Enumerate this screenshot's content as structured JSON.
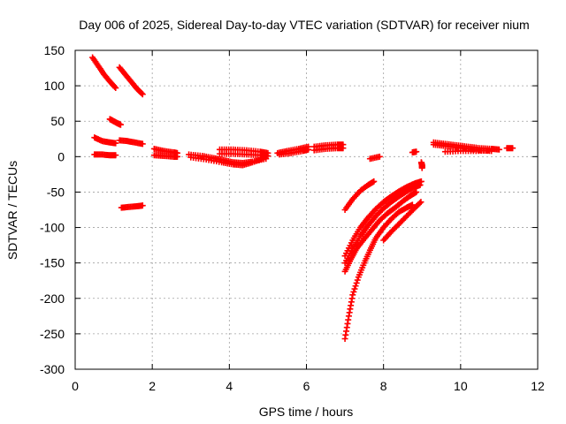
{
  "chart_data": {
    "type": "scatter",
    "title": "Day 006 of 2025, Sidereal Day-to-day VTEC variation (SDTVAR) for receiver nium",
    "xlabel": "GPS time / hours",
    "ylabel": "SDTVAR / TECUs",
    "xlim": [
      0,
      12
    ],
    "ylim": [
      -300,
      150
    ],
    "xticks": [
      0,
      2,
      4,
      6,
      8,
      10,
      12
    ],
    "yticks": [
      -300,
      -250,
      -200,
      -150,
      -100,
      -50,
      0,
      50,
      100,
      150
    ],
    "grid": true,
    "marker": "+",
    "color": "#ff0000",
    "series": [
      {
        "points": [
          [
            0.45,
            140
          ],
          [
            0.6,
            128
          ],
          [
            0.75,
            116
          ],
          [
            0.9,
            106
          ],
          [
            1.05,
            97
          ]
        ]
      },
      {
        "points": [
          [
            1.15,
            126
          ],
          [
            1.3,
            116
          ],
          [
            1.45,
            106
          ],
          [
            1.6,
            96
          ],
          [
            1.75,
            88
          ]
        ]
      },
      {
        "points": [
          [
            0.9,
            53
          ],
          [
            1.0,
            50
          ],
          [
            1.1,
            47
          ],
          [
            1.18,
            45
          ]
        ]
      },
      {
        "points": [
          [
            0.5,
            27
          ],
          [
            0.7,
            22
          ],
          [
            0.9,
            20
          ],
          [
            1.05,
            19
          ]
        ]
      },
      {
        "points": [
          [
            1.15,
            23
          ],
          [
            1.35,
            22
          ],
          [
            1.55,
            20
          ],
          [
            1.75,
            18
          ]
        ]
      },
      {
        "points": [
          [
            0.5,
            3
          ],
          [
            0.7,
            3
          ],
          [
            0.9,
            2
          ],
          [
            1.05,
            2
          ]
        ]
      },
      {
        "points": [
          [
            1.2,
            -72
          ],
          [
            1.4,
            -71
          ],
          [
            1.6,
            -70
          ],
          [
            1.75,
            -69
          ]
        ]
      },
      {
        "points": [
          [
            2.05,
            11
          ],
          [
            2.3,
            8
          ],
          [
            2.55,
            6
          ],
          [
            2.65,
            5
          ]
        ]
      },
      {
        "points": [
          [
            2.05,
            2
          ],
          [
            2.3,
            1
          ],
          [
            2.55,
            0
          ],
          [
            2.65,
            0
          ]
        ]
      },
      {
        "points": [
          [
            2.95,
            3
          ],
          [
            3.3,
            1
          ],
          [
            3.6,
            -2
          ],
          [
            3.85,
            -5
          ],
          [
            4.1,
            -8
          ],
          [
            4.35,
            -9
          ],
          [
            4.6,
            -7
          ],
          [
            4.95,
            -3
          ]
        ]
      },
      {
        "points": [
          [
            3.0,
            -1
          ],
          [
            3.4,
            -4
          ],
          [
            3.8,
            -8
          ],
          [
            4.1,
            -11
          ],
          [
            4.35,
            -12
          ],
          [
            4.6,
            -8
          ],
          [
            4.9,
            -2
          ]
        ]
      },
      {
        "points": [
          [
            3.75,
            10
          ],
          [
            4.1,
            10
          ],
          [
            4.45,
            9
          ],
          [
            4.8,
            7
          ],
          [
            5.0,
            5
          ]
        ]
      },
      {
        "points": [
          [
            3.75,
            4
          ],
          [
            4.1,
            4
          ],
          [
            4.45,
            3
          ],
          [
            4.8,
            2
          ],
          [
            5.0,
            1
          ]
        ]
      },
      {
        "points": [
          [
            5.25,
            5
          ],
          [
            5.5,
            8
          ],
          [
            5.8,
            11
          ],
          [
            6.05,
            14
          ]
        ]
      },
      {
        "points": [
          [
            5.3,
            3
          ],
          [
            5.6,
            5
          ],
          [
            5.9,
            8
          ],
          [
            6.05,
            10
          ]
        ]
      },
      {
        "points": [
          [
            6.2,
            14
          ],
          [
            6.5,
            16
          ],
          [
            6.8,
            17
          ],
          [
            6.95,
            17
          ]
        ]
      },
      {
        "points": [
          [
            6.2,
            9
          ],
          [
            6.5,
            11
          ],
          [
            6.8,
            12
          ],
          [
            6.95,
            12
          ]
        ]
      },
      {
        "points": [
          [
            7.0,
            -75
          ],
          [
            7.2,
            -60
          ],
          [
            7.4,
            -48
          ],
          [
            7.6,
            -40
          ],
          [
            7.75,
            -35
          ]
        ]
      },
      {
        "points": [
          [
            7.65,
            -3
          ],
          [
            7.9,
            0
          ]
        ]
      },
      {
        "points": [
          [
            8.75,
            6
          ],
          [
            8.85,
            7
          ]
        ]
      },
      {
        "points": [
          [
            8.98,
            -8
          ],
          [
            9.0,
            -12
          ],
          [
            9.0,
            -16
          ]
        ]
      },
      {
        "points": [
          [
            7.0,
            -257
          ],
          [
            7.1,
            -225
          ],
          [
            7.2,
            -195
          ],
          [
            7.35,
            -170
          ],
          [
            7.5,
            -150
          ],
          [
            7.65,
            -132
          ],
          [
            7.8,
            -115
          ],
          [
            8.0,
            -100
          ],
          [
            8.2,
            -88
          ],
          [
            8.4,
            -78
          ],
          [
            8.6,
            -72
          ],
          [
            8.75,
            -68
          ]
        ]
      },
      {
        "points": [
          [
            7.0,
            -162
          ],
          [
            7.15,
            -145
          ],
          [
            7.3,
            -130
          ],
          [
            7.5,
            -116
          ],
          [
            7.7,
            -103
          ],
          [
            7.9,
            -90
          ],
          [
            8.1,
            -80
          ],
          [
            8.3,
            -72
          ],
          [
            8.5,
            -63
          ],
          [
            8.7,
            -55
          ],
          [
            8.85,
            -50
          ]
        ]
      },
      {
        "points": [
          [
            7.0,
            -150
          ],
          [
            7.2,
            -130
          ],
          [
            7.4,
            -112
          ],
          [
            7.6,
            -97
          ],
          [
            7.8,
            -84
          ],
          [
            8.0,
            -73
          ],
          [
            8.2,
            -64
          ],
          [
            8.4,
            -56
          ],
          [
            8.6,
            -49
          ],
          [
            8.8,
            -43
          ],
          [
            8.95,
            -40
          ]
        ]
      },
      {
        "points": [
          [
            7.0,
            -140
          ],
          [
            7.2,
            -118
          ],
          [
            7.4,
            -100
          ],
          [
            7.6,
            -86
          ],
          [
            7.8,
            -74
          ],
          [
            8.0,
            -64
          ],
          [
            8.2,
            -56
          ],
          [
            8.4,
            -49
          ],
          [
            8.6,
            -43
          ],
          [
            8.8,
            -38
          ],
          [
            8.98,
            -35
          ]
        ]
      },
      {
        "points": [
          [
            8.0,
            -118
          ],
          [
            8.2,
            -106
          ],
          [
            8.4,
            -95
          ],
          [
            8.6,
            -84
          ],
          [
            8.8,
            -73
          ],
          [
            8.97,
            -64
          ]
        ]
      },
      {
        "points": [
          [
            9.3,
            20
          ],
          [
            9.6,
            18
          ],
          [
            9.9,
            16
          ],
          [
            10.2,
            14
          ],
          [
            10.5,
            12
          ],
          [
            10.8,
            11
          ],
          [
            11.0,
            10
          ]
        ]
      },
      {
        "points": [
          [
            9.3,
            17
          ],
          [
            9.6,
            15
          ],
          [
            9.9,
            13
          ],
          [
            10.2,
            11
          ],
          [
            10.5,
            9
          ],
          [
            10.8,
            8
          ]
        ]
      },
      {
        "points": [
          [
            9.6,
            7
          ],
          [
            10.0,
            8
          ],
          [
            10.4,
            8
          ],
          [
            10.8,
            9
          ]
        ]
      },
      {
        "points": [
          [
            11.2,
            12
          ],
          [
            11.35,
            12
          ]
        ]
      }
    ]
  }
}
